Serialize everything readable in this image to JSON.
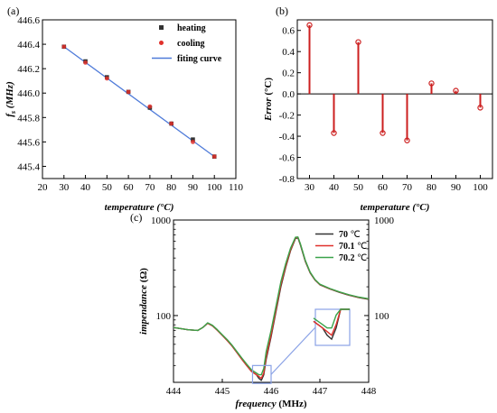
{
  "chart_data": [
    {
      "type": "scatter",
      "panel_label": "(a)",
      "xlabel": "temperature (°C)",
      "ylabel": "fₛ (MHz)",
      "ylabel_main": "f",
      "ylabel_sub": "s",
      "ylabel_unit": " (MHz)",
      "xlabel_main": "temperature",
      "xlabel_unit": " (°C)",
      "xlim": [
        20,
        110
      ],
      "ylim": [
        445.3,
        446.6
      ],
      "xticks": [
        "20",
        "30",
        "40",
        "50",
        "60",
        "70",
        "80",
        "90",
        "100",
        "110"
      ],
      "yticks": [
        "445.4",
        "445.6",
        "445.8",
        "446.0",
        "446.2",
        "446.4",
        "446.6"
      ],
      "legend_position": "top-right",
      "series": [
        {
          "name": "heating",
          "color": "#333333",
          "marker": "square",
          "x": [
            30,
            40,
            50,
            60,
            70,
            80,
            90,
            100
          ],
          "y": [
            446.38,
            446.26,
            446.13,
            446.01,
            445.88,
            445.75,
            445.62,
            445.48
          ]
        },
        {
          "name": "cooling",
          "color": "#e0302b",
          "marker": "circle",
          "x": [
            30,
            40,
            50,
            60,
            70,
            80,
            90,
            100
          ],
          "y": [
            446.38,
            446.25,
            446.12,
            446.01,
            445.89,
            445.75,
            445.6,
            445.48
          ]
        },
        {
          "name": "fiting curve",
          "color": "#4f7bd9",
          "marker": "line",
          "x": [
            30,
            100
          ],
          "y": [
            446.38,
            445.48
          ]
        }
      ]
    },
    {
      "type": "bar",
      "panel_label": "(b)",
      "xlabel": "temperature (°C)",
      "ylabel": "Error (°C)",
      "ylabel_main": "Error",
      "ylabel_unit": " (°C)",
      "xlabel_main": "temperature",
      "xlabel_unit": " (°C)",
      "xlim": [
        25,
        105
      ],
      "ylim": [
        -0.8,
        0.7
      ],
      "xticks": [
        "30",
        "40",
        "50",
        "60",
        "70",
        "80",
        "90",
        "100"
      ],
      "yticks": [
        "-0.8",
        "-0.6",
        "-0.4",
        "-0.2",
        "0.0",
        "0.2",
        "0.4",
        "0.6"
      ],
      "color": "#cc1f1f",
      "x": [
        30,
        40,
        50,
        60,
        70,
        80,
        90,
        100
      ],
      "values": [
        0.65,
        -0.37,
        0.49,
        -0.37,
        -0.44,
        0.1,
        0.03,
        -0.13
      ]
    },
    {
      "type": "line",
      "panel_label": "(c)",
      "xlabel": "frequency (MHz)",
      "ylabel": "impendance (Ω)",
      "xlabel_main": "frequency",
      "xlabel_unit": " (MHz)",
      "ylabel_main": "impendance",
      "ylabel_unit": " (Ω)",
      "xlim": [
        444,
        448
      ],
      "ylim": [
        20,
        1000
      ],
      "yscale": "log",
      "xticks": [
        "444",
        "445",
        "446",
        "447",
        "448"
      ],
      "yticks": [
        "100",
        "1000"
      ],
      "yticks_right": [
        "100",
        "1000"
      ],
      "legend_position": "top-right",
      "series": [
        {
          "name": "70",
          "unit": " ℃",
          "color": "#333333",
          "x": [
            444.0,
            444.3,
            444.5,
            444.6,
            444.7,
            444.8,
            444.9,
            445.0,
            445.1,
            445.2,
            445.3,
            445.4,
            445.5,
            445.6,
            445.7,
            445.75,
            445.8,
            445.85,
            445.9,
            446.0,
            446.1,
            446.2,
            446.3,
            446.4,
            446.5,
            446.55,
            446.6,
            446.7,
            446.8,
            446.9,
            447.0,
            447.2,
            447.4,
            447.6,
            447.8,
            448.0
          ],
          "y": [
            75,
            71,
            70,
            75,
            83,
            78,
            70,
            62,
            55,
            48,
            41,
            35,
            30,
            26,
            24,
            22,
            21,
            24,
            35,
            60,
            110,
            200,
            320,
            480,
            640,
            650,
            550,
            370,
            280,
            235,
            210,
            190,
            175,
            163,
            154,
            148
          ]
        },
        {
          "name": "70.1",
          "unit": " ℃",
          "color": "#e0302b",
          "x": [
            444.0,
            444.3,
            444.5,
            444.6,
            444.7,
            444.8,
            444.9,
            445.0,
            445.1,
            445.2,
            445.3,
            445.4,
            445.5,
            445.6,
            445.7,
            445.75,
            445.8,
            445.85,
            445.9,
            446.0,
            446.1,
            446.2,
            446.3,
            446.4,
            446.5,
            446.55,
            446.6,
            446.7,
            446.8,
            446.9,
            447.0,
            447.2,
            447.4,
            447.6,
            447.8,
            448.0
          ],
          "y": [
            75,
            71,
            70,
            75,
            83,
            78,
            70,
            62,
            55,
            48,
            41,
            35,
            30,
            26,
            24,
            23,
            22,
            25,
            37,
            63,
            115,
            210,
            330,
            490,
            650,
            660,
            560,
            375,
            282,
            236,
            211,
            191,
            176,
            164,
            155,
            149
          ]
        },
        {
          "name": "70.2",
          "unit": " ℃",
          "color": "#3aa34a",
          "x": [
            444.0,
            444.3,
            444.5,
            444.6,
            444.7,
            444.8,
            444.9,
            445.0,
            445.1,
            445.2,
            445.3,
            445.4,
            445.5,
            445.6,
            445.7,
            445.75,
            445.8,
            445.85,
            445.9,
            446.0,
            446.1,
            446.2,
            446.3,
            446.4,
            446.5,
            446.55,
            446.6,
            446.7,
            446.8,
            446.9,
            447.0,
            447.2,
            447.4,
            447.6,
            447.8,
            448.0
          ],
          "y": [
            75,
            71,
            70,
            75,
            84,
            79,
            71,
            63,
            56,
            49,
            42,
            36,
            31,
            27,
            25,
            24,
            24,
            28,
            42,
            70,
            125,
            225,
            350,
            510,
            660,
            665,
            565,
            380,
            285,
            238,
            213,
            192,
            177,
            165,
            156,
            150
          ]
        }
      ]
    }
  ]
}
